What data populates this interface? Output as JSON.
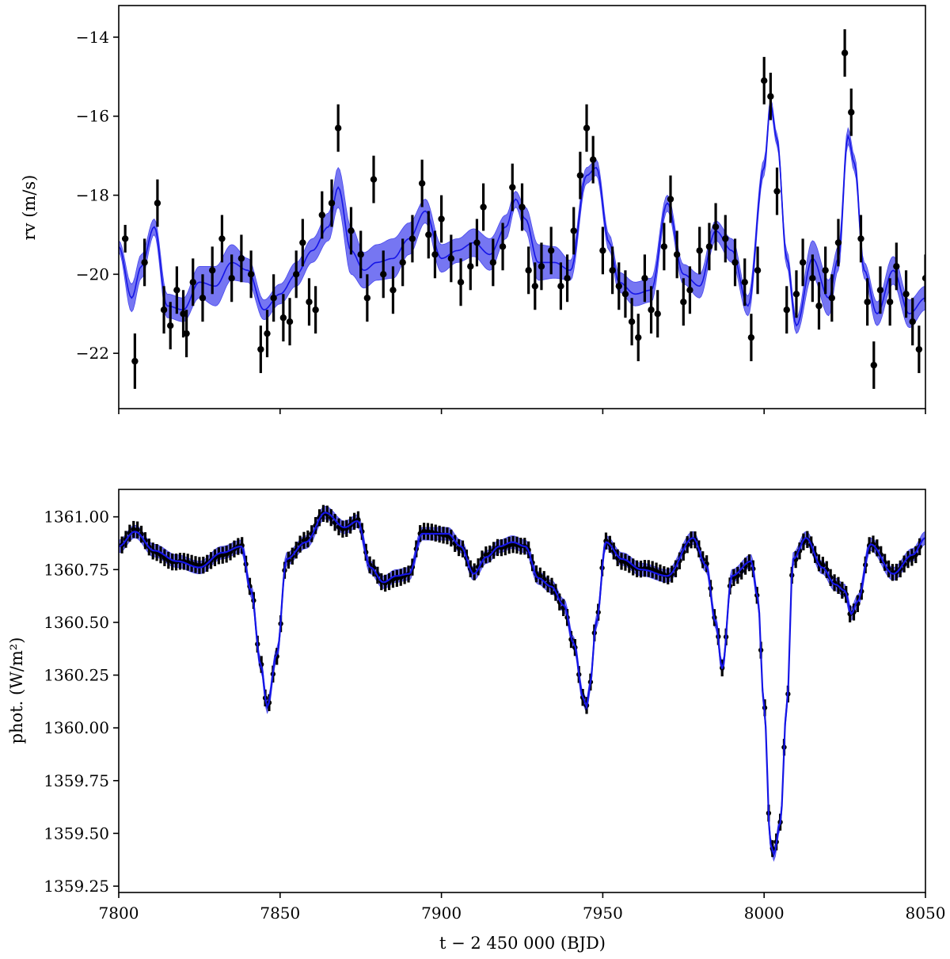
{
  "chart_data": [
    {
      "type": "scatter",
      "panel": "top",
      "xlim": [
        7800,
        8050
      ],
      "ylim": [
        -23.4,
        -13.2
      ],
      "ylabel": "rv (m/s)",
      "xlabel": "",
      "x_ticks": [
        7800,
        7850,
        7900,
        7950,
        8000,
        8050
      ],
      "x_tick_labels_shown": false,
      "y_ticks": [
        -22,
        -20,
        -18,
        -16,
        -14
      ],
      "y_tick_labels": [
        "−22",
        "−20",
        "−18",
        "−16",
        "−14"
      ],
      "grid": false,
      "colors": {
        "data": "#000000",
        "model": "#1515e6",
        "band": "#4848ee"
      },
      "model_line": {
        "x": [
          7800,
          7804,
          7807,
          7811,
          7815,
          7820,
          7825,
          7830,
          7835,
          7840,
          7845,
          7850,
          7855,
          7860,
          7865,
          7868,
          7872,
          7876,
          7880,
          7885,
          7890,
          7895,
          7900,
          7905,
          7910,
          7915,
          7920,
          7923,
          7926,
          7930,
          7935,
          7940,
          7945,
          7948,
          7952,
          7955,
          7960,
          7965,
          7970,
          7975,
          7980,
          7985,
          7990,
          7995,
          8000,
          8002,
          8004,
          8007,
          8010,
          8015,
          8020,
          8023,
          8026,
          8028,
          8031,
          8035,
          8040,
          8045,
          8050
        ],
        "y": [
          -19.3,
          -20.6,
          -19.8,
          -18.8,
          -20.8,
          -20.9,
          -20.2,
          -20.3,
          -19.7,
          -19.9,
          -20.9,
          -20.5,
          -20.0,
          -19.4,
          -18.8,
          -17.8,
          -19.4,
          -19.9,
          -19.7,
          -19.6,
          -19.1,
          -18.4,
          -19.6,
          -19.4,
          -19.2,
          -19.5,
          -18.8,
          -18.1,
          -18.6,
          -19.7,
          -19.7,
          -19.9,
          -17.5,
          -17.3,
          -19.2,
          -20.2,
          -20.5,
          -20.4,
          -18.2,
          -20.0,
          -20.3,
          -18.9,
          -19.4,
          -20.8,
          -17.3,
          -15.7,
          -16.6,
          -19.6,
          -21.3,
          -19.6,
          -20.6,
          -19.6,
          -16.5,
          -17.2,
          -19.9,
          -21.0,
          -19.9,
          -21.0,
          -20.6
        ],
        "band_halfwidth": [
          0.15,
          0.35,
          0.3,
          0.2,
          0.3,
          0.3,
          0.4,
          0.5,
          0.45,
          0.3,
          0.25,
          0.25,
          0.3,
          0.3,
          0.35,
          0.5,
          0.6,
          0.45,
          0.45,
          0.5,
          0.4,
          0.3,
          0.35,
          0.3,
          0.35,
          0.4,
          0.3,
          0.2,
          0.3,
          0.45,
          0.4,
          0.25,
          0.2,
          0.2,
          0.2,
          0.25,
          0.3,
          0.3,
          0.2,
          0.25,
          0.3,
          0.25,
          0.3,
          0.25,
          0.2,
          0.15,
          0.15,
          0.2,
          0.2,
          0.45,
          0.45,
          0.3,
          0.2,
          0.2,
          0.2,
          0.3,
          0.35,
          0.35,
          0.3
        ]
      },
      "points": [
        {
          "x": 7802,
          "y": -19.1,
          "err": 0.35
        },
        {
          "x": 7805,
          "y": -22.2,
          "err": 0.7
        },
        {
          "x": 7808,
          "y": -19.7,
          "err": 0.6
        },
        {
          "x": 7812,
          "y": -18.2,
          "err": 0.6
        },
        {
          "x": 7814,
          "y": -20.9,
          "err": 0.6
        },
        {
          "x": 7816,
          "y": -21.3,
          "err": 0.6
        },
        {
          "x": 7818,
          "y": -20.4,
          "err": 0.6
        },
        {
          "x": 7820,
          "y": -21.0,
          "err": 0.6
        },
        {
          "x": 7821,
          "y": -21.5,
          "err": 0.6
        },
        {
          "x": 7823,
          "y": -20.2,
          "err": 0.6
        },
        {
          "x": 7826,
          "y": -20.6,
          "err": 0.6
        },
        {
          "x": 7829,
          "y": -19.9,
          "err": 0.6
        },
        {
          "x": 7832,
          "y": -19.1,
          "err": 0.6
        },
        {
          "x": 7835,
          "y": -20.1,
          "err": 0.6
        },
        {
          "x": 7838,
          "y": -19.6,
          "err": 0.6
        },
        {
          "x": 7841,
          "y": -20.0,
          "err": 0.6
        },
        {
          "x": 7844,
          "y": -21.9,
          "err": 0.6
        },
        {
          "x": 7846,
          "y": -21.5,
          "err": 0.6
        },
        {
          "x": 7848,
          "y": -20.6,
          "err": 0.6
        },
        {
          "x": 7851,
          "y": -21.1,
          "err": 0.6
        },
        {
          "x": 7853,
          "y": -21.2,
          "err": 0.6
        },
        {
          "x": 7855,
          "y": -20.0,
          "err": 0.6
        },
        {
          "x": 7857,
          "y": -19.2,
          "err": 0.6
        },
        {
          "x": 7859,
          "y": -20.7,
          "err": 0.6
        },
        {
          "x": 7861,
          "y": -20.9,
          "err": 0.6
        },
        {
          "x": 7863,
          "y": -18.5,
          "err": 0.6
        },
        {
          "x": 7866,
          "y": -18.2,
          "err": 0.6
        },
        {
          "x": 7868,
          "y": -16.3,
          "err": 0.6
        },
        {
          "x": 7872,
          "y": -18.9,
          "err": 0.6
        },
        {
          "x": 7875,
          "y": -19.5,
          "err": 0.6
        },
        {
          "x": 7877,
          "y": -20.6,
          "err": 0.6
        },
        {
          "x": 7879,
          "y": -17.6,
          "err": 0.6
        },
        {
          "x": 7882,
          "y": -20.0,
          "err": 0.6
        },
        {
          "x": 7885,
          "y": -20.4,
          "err": 0.6
        },
        {
          "x": 7888,
          "y": -19.7,
          "err": 0.6
        },
        {
          "x": 7891,
          "y": -19.1,
          "err": 0.6
        },
        {
          "x": 7894,
          "y": -17.7,
          "err": 0.6
        },
        {
          "x": 7896,
          "y": -19.0,
          "err": 0.6
        },
        {
          "x": 7898,
          "y": -19.5,
          "err": 0.6
        },
        {
          "x": 7900,
          "y": -18.6,
          "err": 0.6
        },
        {
          "x": 7903,
          "y": -19.6,
          "err": 0.6
        },
        {
          "x": 7906,
          "y": -20.2,
          "err": 0.6
        },
        {
          "x": 7909,
          "y": -19.8,
          "err": 0.6
        },
        {
          "x": 7911,
          "y": -19.2,
          "err": 0.6
        },
        {
          "x": 7913,
          "y": -18.3,
          "err": 0.6
        },
        {
          "x": 7916,
          "y": -19.7,
          "err": 0.6
        },
        {
          "x": 7919,
          "y": -19.3,
          "err": 0.6
        },
        {
          "x": 7922,
          "y": -17.8,
          "err": 0.6
        },
        {
          "x": 7925,
          "y": -18.3,
          "err": 0.6
        },
        {
          "x": 7927,
          "y": -19.9,
          "err": 0.6
        },
        {
          "x": 7929,
          "y": -20.3,
          "err": 0.6
        },
        {
          "x": 7931,
          "y": -19.8,
          "err": 0.6
        },
        {
          "x": 7934,
          "y": -19.4,
          "err": 0.6
        },
        {
          "x": 7937,
          "y": -20.3,
          "err": 0.6
        },
        {
          "x": 7939,
          "y": -20.1,
          "err": 0.6
        },
        {
          "x": 7941,
          "y": -18.9,
          "err": 0.6
        },
        {
          "x": 7943,
          "y": -17.5,
          "err": 0.6
        },
        {
          "x": 7945,
          "y": -16.3,
          "err": 0.6
        },
        {
          "x": 7947,
          "y": -17.1,
          "err": 0.6
        },
        {
          "x": 7950,
          "y": -19.4,
          "err": 0.6
        },
        {
          "x": 7953,
          "y": -19.9,
          "err": 0.6
        },
        {
          "x": 7955,
          "y": -20.3,
          "err": 0.6
        },
        {
          "x": 7957,
          "y": -20.5,
          "err": 0.6
        },
        {
          "x": 7959,
          "y": -21.2,
          "err": 0.6
        },
        {
          "x": 7961,
          "y": -21.6,
          "err": 0.6
        },
        {
          "x": 7963,
          "y": -20.1,
          "err": 0.6
        },
        {
          "x": 7965,
          "y": -20.9,
          "err": 0.6
        },
        {
          "x": 7967,
          "y": -21.0,
          "err": 0.6
        },
        {
          "x": 7969,
          "y": -19.3,
          "err": 0.6
        },
        {
          "x": 7971,
          "y": -18.1,
          "err": 0.6
        },
        {
          "x": 7973,
          "y": -19.5,
          "err": 0.6
        },
        {
          "x": 7975,
          "y": -20.7,
          "err": 0.6
        },
        {
          "x": 7977,
          "y": -20.4,
          "err": 0.6
        },
        {
          "x": 7980,
          "y": -19.4,
          "err": 0.6
        },
        {
          "x": 7983,
          "y": -19.3,
          "err": 0.6
        },
        {
          "x": 7985,
          "y": -18.8,
          "err": 0.6
        },
        {
          "x": 7988,
          "y": -19.1,
          "err": 0.6
        },
        {
          "x": 7991,
          "y": -19.7,
          "err": 0.6
        },
        {
          "x": 7994,
          "y": -20.2,
          "err": 0.6
        },
        {
          "x": 7996,
          "y": -21.6,
          "err": 0.6
        },
        {
          "x": 7998,
          "y": -19.9,
          "err": 0.6
        },
        {
          "x": 8000,
          "y": -15.1,
          "err": 0.6
        },
        {
          "x": 8002,
          "y": -15.5,
          "err": 0.6
        },
        {
          "x": 8004,
          "y": -17.9,
          "err": 0.6
        },
        {
          "x": 8007,
          "y": -20.9,
          "err": 0.6
        },
        {
          "x": 8010,
          "y": -20.5,
          "err": 0.6
        },
        {
          "x": 8012,
          "y": -19.7,
          "err": 0.6
        },
        {
          "x": 8015,
          "y": -20.1,
          "err": 0.6
        },
        {
          "x": 8017,
          "y": -20.8,
          "err": 0.6
        },
        {
          "x": 8019,
          "y": -19.9,
          "err": 0.6
        },
        {
          "x": 8021,
          "y": -20.6,
          "err": 0.6
        },
        {
          "x": 8023,
          "y": -19.2,
          "err": 0.6
        },
        {
          "x": 8025,
          "y": -14.4,
          "err": 0.6
        },
        {
          "x": 8027,
          "y": -15.9,
          "err": 0.6
        },
        {
          "x": 8030,
          "y": -19.1,
          "err": 0.6
        },
        {
          "x": 8032,
          "y": -20.7,
          "err": 0.6
        },
        {
          "x": 8034,
          "y": -22.3,
          "err": 0.6
        },
        {
          "x": 8036,
          "y": -20.4,
          "err": 0.6
        },
        {
          "x": 8039,
          "y": -20.7,
          "err": 0.6
        },
        {
          "x": 8041,
          "y": -19.8,
          "err": 0.6
        },
        {
          "x": 8044,
          "y": -20.5,
          "err": 0.6
        },
        {
          "x": 8046,
          "y": -21.2,
          "err": 0.6
        },
        {
          "x": 8048,
          "y": -21.9,
          "err": 0.6
        },
        {
          "x": 8050,
          "y": -20.1,
          "err": 0.6
        }
      ]
    },
    {
      "type": "scatter",
      "panel": "bottom",
      "xlim": [
        7800,
        8050
      ],
      "ylim": [
        1359.22,
        1361.13
      ],
      "ylabel": "phot. (W/m²)",
      "xlabel": "t − 2 450 000 (BJD)",
      "x_ticks": [
        7800,
        7850,
        7900,
        7950,
        8000,
        8050
      ],
      "x_tick_labels": [
        "7800",
        "7850",
        "7900",
        "7950",
        "8000",
        "8050"
      ],
      "y_ticks": [
        1359.25,
        1359.5,
        1359.75,
        1360.0,
        1360.25,
        1360.5,
        1360.75,
        1361.0
      ],
      "y_tick_labels": [
        "1359.25",
        "1359.50",
        "1359.75",
        "1360.00",
        "1360.25",
        "1360.50",
        "1360.75",
        "1361.00"
      ],
      "grid": false,
      "colors": {
        "data": "#000000",
        "model": "#1515e6",
        "band": "#4848ee"
      },
      "model_line": {
        "x": [
          7800,
          7805,
          7811,
          7818,
          7825,
          7832,
          7838,
          7841,
          7844,
          7846,
          7849,
          7852,
          7858,
          7864,
          7870,
          7874,
          7878,
          7882,
          7886,
          7890,
          7894,
          7898,
          7902,
          7906,
          7910,
          7914,
          7918,
          7922,
          7926,
          7930,
          7934,
          7938,
          7941,
          7944,
          7945,
          7946,
          7948,
          7951,
          7956,
          7962,
          7970,
          7978,
          7982,
          7985,
          7987,
          7990,
          7996,
          7998,
          8000,
          8002,
          8003,
          8005,
          8007,
          8009,
          8013,
          8018,
          8022,
          8025,
          8027,
          8029,
          8033,
          8040,
          8046,
          8050
        ],
        "y": [
          1360.86,
          1360.93,
          1360.84,
          1360.79,
          1360.76,
          1360.83,
          1360.86,
          1360.65,
          1360.3,
          1360.1,
          1360.35,
          1360.8,
          1360.88,
          1361.02,
          1360.95,
          1360.98,
          1360.76,
          1360.69,
          1360.72,
          1360.73,
          1360.92,
          1360.92,
          1360.92,
          1360.86,
          1360.73,
          1360.81,
          1360.86,
          1360.88,
          1360.86,
          1360.71,
          1360.67,
          1360.58,
          1360.4,
          1360.14,
          1360.1,
          1360.2,
          1360.5,
          1360.88,
          1360.8,
          1360.75,
          1360.72,
          1360.9,
          1360.77,
          1360.5,
          1360.28,
          1360.72,
          1360.79,
          1360.62,
          1360.1,
          1359.45,
          1359.4,
          1359.55,
          1360.1,
          1360.8,
          1360.9,
          1360.76,
          1360.68,
          1360.65,
          1360.54,
          1360.6,
          1360.87,
          1360.73,
          1360.82,
          1360.9
        ],
        "band_halfwidth": 0.03
      },
      "dense_points": {
        "x_start": 7801,
        "x_end": 8049,
        "step": 1.2,
        "err": 0.04,
        "comment_free": true
      }
    }
  ]
}
